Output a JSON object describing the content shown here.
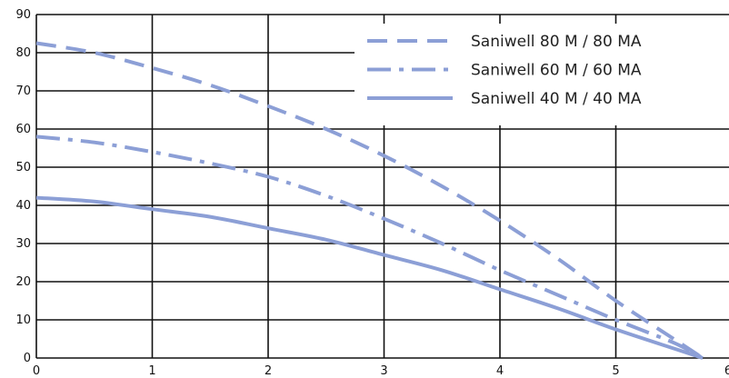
{
  "chart_data": {
    "type": "line",
    "title": "",
    "xlabel": "",
    "ylabel": "",
    "xlim": [
      0,
      6
    ],
    "ylim": [
      0,
      90
    ],
    "x_ticks": [
      "0",
      "1",
      "2",
      "3",
      "4",
      "5",
      "6"
    ],
    "y_ticks": [
      "0",
      "10",
      "20",
      "30",
      "40",
      "50",
      "60",
      "70",
      "80",
      "90"
    ],
    "grid": true,
    "legend_position": "top-right",
    "line_color": "#8c9fd6",
    "series": [
      {
        "name": "Saniwell 80 M / 80 MA",
        "style": "dashed",
        "x": [
          0,
          0.5,
          1,
          1.5,
          2,
          2.5,
          3,
          3.5,
          4,
          4.5,
          5,
          5.5,
          5.75
        ],
        "y": [
          82.5,
          80,
          76,
          71.5,
          66,
          60,
          53,
          45,
          36,
          26,
          15,
          5,
          0
        ]
      },
      {
        "name": "Saniwell 60 M / 60 MA",
        "style": "dash-dot",
        "x": [
          0,
          0.5,
          1,
          1.5,
          2,
          2.5,
          3,
          3.5,
          4,
          4.5,
          5,
          5.5,
          5.75
        ],
        "y": [
          58,
          56.5,
          54,
          51,
          47.5,
          42.5,
          36.5,
          30,
          23,
          16.5,
          10,
          4,
          0
        ]
      },
      {
        "name": "Saniwell 40 M / 40 MA",
        "style": "solid",
        "x": [
          0,
          0.5,
          1,
          1.5,
          2,
          2.5,
          3,
          3.5,
          4,
          4.5,
          5,
          5.5,
          5.75
        ],
        "y": [
          42,
          41,
          39,
          37,
          34,
          31,
          27,
          23,
          18,
          13,
          7.5,
          2.5,
          0
        ]
      }
    ]
  }
}
